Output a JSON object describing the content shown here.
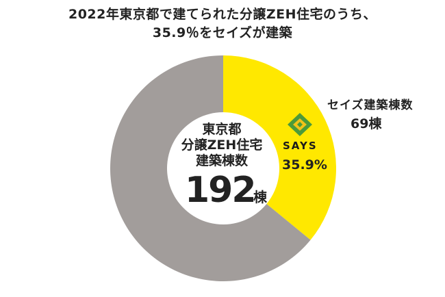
{
  "title": {
    "line1": "2022年東京都で建てられた分譲ZEH住宅のうち、",
    "line2": "35.9％をセイズが建築"
  },
  "center": {
    "line1": "東京都",
    "line2": "分譲ZEH住宅",
    "line3": "建築棟数",
    "total": "192",
    "unit": "棟"
  },
  "segment_label": {
    "brand": "SAYS",
    "percent": "35.9%",
    "name": "セイズ建築棟数",
    "count": "69棟"
  },
  "colors": {
    "says": "#ffe800",
    "others": "#a29d9b",
    "logo_green": "#4c9a3a",
    "logo_yellow": "#f2c318"
  },
  "chart_data": {
    "type": "pie",
    "donut": true,
    "title": "2022年東京都で建てられた分譲ZEH住宅のうち、35.9％をセイズが建築",
    "total": 192,
    "slices": [
      {
        "label": "セイズ建築棟数",
        "value": 69,
        "percent": 35.9,
        "color": "#ffe800"
      },
      {
        "label": "",
        "value": 123,
        "percent": 64.1,
        "color": "#a29d9b"
      }
    ]
  }
}
